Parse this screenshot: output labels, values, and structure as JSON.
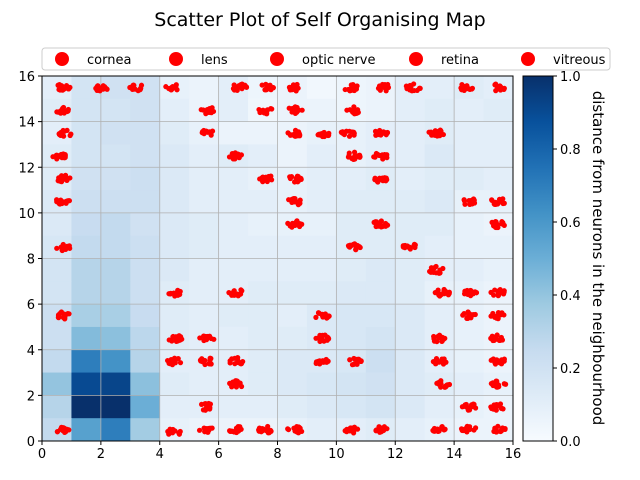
{
  "chart_data": {
    "type": "scatter",
    "title": "Scatter Plot of Self Organising Map",
    "xlim": [
      0,
      16
    ],
    "ylim": [
      0,
      16
    ],
    "x_ticks": [
      0,
      2,
      4,
      6,
      8,
      10,
      12,
      14,
      16
    ],
    "y_ticks": [
      0,
      2,
      4,
      6,
      8,
      10,
      12,
      14,
      16
    ],
    "grid": true,
    "legend_location": "top",
    "legend": [
      "cornea",
      "lens",
      "optic nerve",
      "retina",
      "vitreous"
    ],
    "marker_color": "#ff0000",
    "colorbar": {
      "label": "distance from neurons in the neighbourhood",
      "range": [
        0,
        1
      ],
      "ticks": [
        0.0,
        0.2,
        0.4,
        0.6,
        0.8,
        1.0
      ],
      "colormap": "Blues"
    },
    "heatmap": {
      "rows_top_to_bottom": [
        [
          0.1,
          0.18,
          0.2,
          0.2,
          0.08,
          0.06,
          0.1,
          0.05,
          0.06,
          0.03,
          0.05,
          0.06,
          0.1,
          0.1,
          0.12,
          0.1
        ],
        [
          0.12,
          0.18,
          0.18,
          0.2,
          0.1,
          0.06,
          0.1,
          0.04,
          0.06,
          0.06,
          0.05,
          0.06,
          0.1,
          0.12,
          0.1,
          0.12
        ],
        [
          0.1,
          0.18,
          0.2,
          0.2,
          0.12,
          0.08,
          0.06,
          0.06,
          0.06,
          0.08,
          0.08,
          0.1,
          0.1,
          0.12,
          0.1,
          0.1
        ],
        [
          0.12,
          0.18,
          0.18,
          0.2,
          0.14,
          0.1,
          0.12,
          0.1,
          0.06,
          0.1,
          0.08,
          0.1,
          0.1,
          0.14,
          0.1,
          0.1
        ],
        [
          0.12,
          0.2,
          0.2,
          0.22,
          0.14,
          0.1,
          0.1,
          0.08,
          0.08,
          0.1,
          0.1,
          0.12,
          0.1,
          0.12,
          0.12,
          0.1
        ],
        [
          0.14,
          0.22,
          0.22,
          0.22,
          0.14,
          0.1,
          0.1,
          0.1,
          0.08,
          0.1,
          0.12,
          0.12,
          0.12,
          0.14,
          0.08,
          0.08
        ],
        [
          0.14,
          0.24,
          0.26,
          0.2,
          0.14,
          0.12,
          0.1,
          0.08,
          0.08,
          0.08,
          0.12,
          0.12,
          0.12,
          0.12,
          0.08,
          0.06
        ],
        [
          0.16,
          0.26,
          0.26,
          0.22,
          0.14,
          0.12,
          0.1,
          0.1,
          0.1,
          0.1,
          0.12,
          0.12,
          0.12,
          0.1,
          0.08,
          0.08
        ],
        [
          0.18,
          0.3,
          0.3,
          0.22,
          0.14,
          0.1,
          0.1,
          0.1,
          0.1,
          0.1,
          0.12,
          0.14,
          0.12,
          0.1,
          0.1,
          0.08
        ],
        [
          0.18,
          0.3,
          0.3,
          0.22,
          0.12,
          0.1,
          0.1,
          0.12,
          0.12,
          0.12,
          0.14,
          0.14,
          0.12,
          0.08,
          0.08,
          0.06
        ],
        [
          0.22,
          0.34,
          0.34,
          0.24,
          0.12,
          0.1,
          0.12,
          0.12,
          0.1,
          0.14,
          0.16,
          0.16,
          0.14,
          0.1,
          0.08,
          0.06
        ],
        [
          0.22,
          0.44,
          0.42,
          0.28,
          0.12,
          0.1,
          0.1,
          0.12,
          0.12,
          0.14,
          0.16,
          0.18,
          0.14,
          0.1,
          0.08,
          0.06
        ],
        [
          0.26,
          0.7,
          0.62,
          0.3,
          0.1,
          0.1,
          0.1,
          0.12,
          0.14,
          0.14,
          0.16,
          0.22,
          0.14,
          0.1,
          0.08,
          0.06
        ],
        [
          0.4,
          0.9,
          0.92,
          0.42,
          0.12,
          0.1,
          0.1,
          0.12,
          0.14,
          0.16,
          0.18,
          0.2,
          0.14,
          0.12,
          0.1,
          0.08
        ],
        [
          0.3,
          1.0,
          1.0,
          0.5,
          0.1,
          0.1,
          0.1,
          0.1,
          0.12,
          0.14,
          0.16,
          0.18,
          0.14,
          0.1,
          0.08,
          0.06
        ],
        [
          0.26,
          0.56,
          0.7,
          0.36,
          0.08,
          0.06,
          0.06,
          0.06,
          0.08,
          0.1,
          0.1,
          0.12,
          0.1,
          0.08,
          0.06,
          0.06
        ]
      ]
    },
    "clusters": [
      [
        0.7,
        15.5
      ],
      [
        2,
        15.5
      ],
      [
        3.2,
        15.5
      ],
      [
        4.4,
        15.5
      ],
      [
        6.7,
        15.5
      ],
      [
        7.6,
        15.5
      ],
      [
        8.6,
        15.5
      ],
      [
        10.5,
        15.5
      ],
      [
        11.6,
        15.5
      ],
      [
        12.6,
        15.5
      ],
      [
        14.4,
        15.5
      ],
      [
        15.5,
        15.5
      ],
      [
        0.7,
        14.5
      ],
      [
        5.6,
        14.5
      ],
      [
        7.6,
        14.5
      ],
      [
        8.6,
        14.5
      ],
      [
        10.6,
        14.5
      ],
      [
        0.8,
        13.5
      ],
      [
        5.6,
        13.5
      ],
      [
        8.6,
        13.5
      ],
      [
        9.6,
        13.5
      ],
      [
        10.4,
        13.5
      ],
      [
        11.5,
        13.5
      ],
      [
        13.4,
        13.5
      ],
      [
        0.6,
        12.5
      ],
      [
        6.6,
        12.5
      ],
      [
        10.6,
        12.5
      ],
      [
        11.5,
        12.5
      ],
      [
        0.7,
        11.5
      ],
      [
        7.6,
        11.5
      ],
      [
        8.6,
        11.5
      ],
      [
        11.5,
        11.5
      ],
      [
        0.7,
        10.5
      ],
      [
        8.6,
        10.5
      ],
      [
        14.5,
        10.5
      ],
      [
        15.5,
        10.5
      ],
      [
        8.6,
        9.5
      ],
      [
        11.5,
        9.5
      ],
      [
        15.5,
        9.5
      ],
      [
        0.7,
        8.5
      ],
      [
        10.6,
        8.5
      ],
      [
        12.5,
        8.5
      ],
      [
        13.4,
        7.5
      ],
      [
        4.5,
        6.5
      ],
      [
        6.6,
        6.5
      ],
      [
        13.6,
        6.5
      ],
      [
        14.5,
        6.5
      ],
      [
        15.5,
        6.5
      ],
      [
        0.7,
        5.5
      ],
      [
        9.5,
        5.5
      ],
      [
        14.5,
        5.5
      ],
      [
        15.5,
        5.5
      ],
      [
        4.5,
        4.5
      ],
      [
        5.6,
        4.5
      ],
      [
        9.5,
        4.5
      ],
      [
        13.5,
        4.5
      ],
      [
        15.5,
        4.5
      ],
      [
        4.5,
        3.5
      ],
      [
        5.6,
        3.5
      ],
      [
        6.6,
        3.5
      ],
      [
        9.5,
        3.5
      ],
      [
        10.6,
        3.5
      ],
      [
        13.5,
        3.5
      ],
      [
        15.5,
        3.5
      ],
      [
        6.6,
        2.5
      ],
      [
        13.6,
        2.5
      ],
      [
        15.5,
        2.5
      ],
      [
        5.6,
        1.5
      ],
      [
        14.5,
        1.5
      ],
      [
        15.5,
        1.5
      ],
      [
        0.7,
        0.5
      ],
      [
        4.5,
        0.4
      ],
      [
        5.6,
        0.5
      ],
      [
        6.6,
        0.5
      ],
      [
        7.6,
        0.5
      ],
      [
        8.6,
        0.5
      ],
      [
        10.5,
        0.5
      ],
      [
        11.5,
        0.5
      ],
      [
        13.5,
        0.5
      ],
      [
        14.5,
        0.5
      ],
      [
        15.5,
        0.5
      ]
    ]
  }
}
